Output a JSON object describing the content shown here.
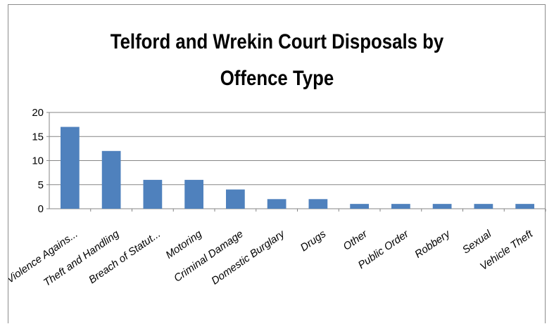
{
  "chart_data": {
    "type": "bar",
    "title": "Telford and Wrekin Court Disposals by Offence Type",
    "title_lines": [
      "Telford and Wrekin Court Disposals by",
      "Offence Type"
    ],
    "categories": [
      "Violence Agains...",
      "Theft and Handling",
      "Breach of Statut...",
      "Motoring",
      "Criminal Damage",
      "Domestic Burglary",
      "Drugs",
      "Other",
      "Public Order",
      "Robbery",
      "Sexual",
      "Vehicle Theft"
    ],
    "values": [
      17,
      12,
      6,
      6,
      4,
      2,
      2,
      1,
      1,
      1,
      1,
      1
    ],
    "yticks": [
      "0",
      "5",
      "10",
      "15",
      "20"
    ],
    "ylim": [
      0,
      20
    ],
    "xlabel": "",
    "ylabel": "",
    "grid": true,
    "legend": "none",
    "bar_color": "#4f81bd",
    "grid_color": "#868686"
  }
}
